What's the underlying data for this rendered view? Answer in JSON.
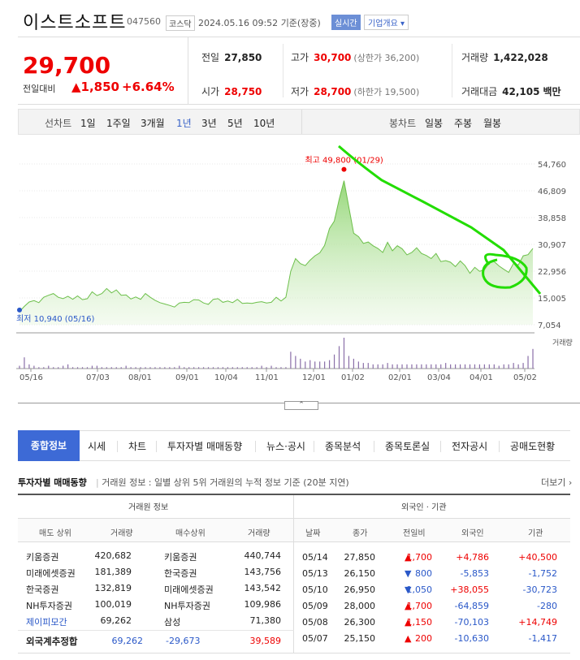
{
  "header": {
    "stock_name": "이스트소프트",
    "code": "047560",
    "market": "코스닥",
    "datetime": "2024.05.16 09:52",
    "basis": "기준(장중)",
    "realtime_btn": "실시간",
    "company_btn": "기업개요"
  },
  "price": {
    "current": "29,700",
    "change_label": "전일대비",
    "change_arrow": "▲",
    "change_value": "1,850",
    "change_pct": "+6.64%"
  },
  "stats": {
    "prev_close": {
      "label": "전일",
      "value": "27,850"
    },
    "high": {
      "label": "고가",
      "value": "30,700",
      "sub": "(상한가 36,200)"
    },
    "volume": {
      "label": "거래량",
      "value": "1,422,028"
    },
    "open": {
      "label": "시가",
      "value": "28,750"
    },
    "low": {
      "label": "저가",
      "value": "28,700",
      "sub": "(하한가 19,500)"
    },
    "amount": {
      "label": "거래대금",
      "value": "42,105",
      "unit": "백만"
    }
  },
  "chart_tabs": {
    "line_label": "선차트",
    "line_items": [
      "1일",
      "1주일",
      "3개월",
      "1년",
      "3년",
      "5년",
      "10년"
    ],
    "active": "1년",
    "candle_label": "봉차트",
    "candle_items": [
      "일봉",
      "주봉",
      "월봉"
    ]
  },
  "chart_data": {
    "type": "area",
    "y_ticks": [
      "54,760",
      "46,809",
      "38,858",
      "30,907",
      "22,956",
      "15,005",
      "7,054"
    ],
    "ylim": [
      7054,
      54760
    ],
    "x_ticks": [
      "05/16",
      "07/03",
      "08/01",
      "09/01",
      "10/04",
      "11/01",
      "12/01",
      "01/02",
      "02/01",
      "03/04",
      "04/01",
      "05/02"
    ],
    "high_annotation": "최고 49,800 (01/29)",
    "low_annotation": "최저 10,940 (05/16)",
    "volume_label": "거래량",
    "values": [
      10940,
      12500,
      13800,
      14200,
      13600,
      15200,
      15800,
      16300,
      15200,
      14800,
      15500,
      14600,
      15600,
      14500,
      14800,
      16800,
      15700,
      16300,
      17800,
      16500,
      17400,
      15800,
      15900,
      14700,
      15300,
      14600,
      16300,
      15200,
      14300,
      13600,
      13200,
      12800,
      12300,
      13500,
      13700,
      13600,
      14500,
      14400,
      13500,
      13100,
      14600,
      14800,
      13700,
      14100,
      13600,
      14600,
      13400,
      13500,
      13400,
      13700,
      13900,
      13500,
      13700,
      15200,
      14100,
      15200,
      22900,
      26700,
      25200,
      24600,
      26200,
      27500,
      28400,
      30600,
      35600,
      37800,
      44200,
      49800,
      42000,
      34200,
      33200,
      31200,
      31600,
      30500,
      29700,
      28500,
      31500,
      29000,
      30500,
      29600,
      27800,
      28500,
      29900,
      28200,
      27600,
      26700,
      28200,
      25800,
      26100,
      25600,
      24300,
      26000,
      24600,
      22300,
      24100,
      22900,
      23400,
      25400,
      25800,
      24500,
      23500,
      22600,
      25300,
      24800,
      27500,
      27850,
      29700
    ],
    "volume": [
      2,
      8,
      3,
      2,
      1,
      1,
      2,
      1,
      1,
      2,
      3,
      1,
      1,
      1,
      1,
      2,
      2,
      1,
      1,
      1,
      1,
      1,
      2,
      1,
      1,
      1,
      1,
      1,
      1,
      1,
      1,
      1,
      1,
      2,
      1,
      1,
      1,
      1,
      1,
      1,
      1,
      1,
      1,
      1,
      1,
      1,
      1,
      1,
      1,
      1,
      2,
      1,
      2,
      1,
      1,
      1,
      12,
      9,
      7,
      5,
      6,
      5,
      5,
      5,
      6,
      10,
      16,
      22,
      9,
      7,
      5,
      4,
      4,
      3,
      3,
      3,
      4,
      3,
      3,
      3,
      3,
      3,
      3,
      3,
      3,
      3,
      3,
      3,
      4,
      3,
      3,
      3,
      3,
      3,
      3,
      3,
      3,
      3,
      3,
      2,
      3,
      3,
      4,
      3,
      4,
      9,
      14
    ]
  },
  "nav": {
    "active": "종합정보",
    "items": [
      "시세",
      "차트",
      "투자자별 매매동향",
      "뉴스·공시",
      "종목분석",
      "종목토론실",
      "전자공시",
      "공매도현황"
    ]
  },
  "investor": {
    "title": "투자자별 매매동향",
    "desc": "거래원 정보 : 일별 상위 5위 거래원의 누적 정보 기준 (20분 지연)",
    "more": "더보기",
    "broker_header": "거래원 정보",
    "foreign_header": "외국인 · 기관",
    "broker_cols": [
      "매도 상위",
      "거래량",
      "매수상위",
      "거래량"
    ],
    "foreign_cols": [
      "날짜",
      "종가",
      "전일비",
      "외국인",
      "기관"
    ],
    "brokers": [
      [
        "키움증권",
        "420,682",
        "키움증권",
        "440,744"
      ],
      [
        "미래에셋증권",
        "181,389",
        "한국증권",
        "143,756"
      ],
      [
        "한국증권",
        "132,819",
        "미래에셋증권",
        "143,542"
      ],
      [
        "NH투자증권",
        "100,019",
        "NH투자증권",
        "109,986"
      ],
      [
        "제이피모간",
        "69,262",
        "삼성",
        "71,380"
      ]
    ],
    "foreign_sum": [
      "외국계추정합",
      "69,262",
      "-29,673",
      "39,589"
    ],
    "foreign": [
      [
        "05/14",
        "27,850",
        "▲",
        "1,700",
        "+4,786",
        "+40,500"
      ],
      [
        "05/13",
        "26,150",
        "▼",
        "800",
        "-5,853",
        "-1,752"
      ],
      [
        "05/10",
        "26,950",
        "▼",
        "1,050",
        "+38,055",
        "-30,723"
      ],
      [
        "05/09",
        "28,000",
        "▲",
        "1,700",
        "-64,859",
        "-280"
      ],
      [
        "05/08",
        "26,300",
        "▲",
        "1,150",
        "-70,103",
        "+14,749"
      ],
      [
        "05/07",
        "25,150",
        "▲",
        "200",
        "-10,630",
        "-1,417"
      ]
    ]
  },
  "colors": {
    "up": "#e00000",
    "down": "#2a58c8",
    "accent": "#3d6ad6",
    "area": "#8ad36a",
    "annotation": "#22dd00"
  }
}
